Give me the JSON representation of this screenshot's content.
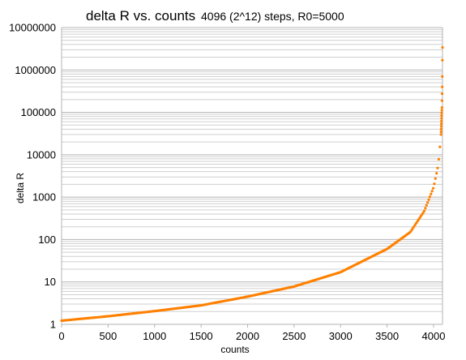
{
  "chart_data": {
    "type": "scatter",
    "title": "delta R vs. counts",
    "subtitle": "4096 (2^12) steps, R0=5000",
    "xlabel": "counts",
    "ylabel": "delta R",
    "xlim": [
      0,
      4096
    ],
    "ylim": [
      1,
      10000000
    ],
    "y_scale": "log",
    "grid": true,
    "legend": "none",
    "x_ticks": [
      "0",
      "500",
      "1000",
      "1500",
      "2000",
      "2500",
      "3000",
      "3500",
      "4000"
    ],
    "y_ticks": [
      "1",
      "10",
      "100",
      "1000",
      "10000",
      "100000",
      "1000000",
      "10000000"
    ],
    "series": [
      {
        "color": "#ff8000",
        "points": [
          {
            "x": 0,
            "y": 1.22
          },
          {
            "x": 500,
            "y": 1.55
          },
          {
            "x": 1000,
            "y": 2.05
          },
          {
            "x": 1500,
            "y": 2.8
          },
          {
            "x": 2000,
            "y": 4.5
          },
          {
            "x": 2500,
            "y": 7.8
          },
          {
            "x": 3000,
            "y": 17
          },
          {
            "x": 3500,
            "y": 60
          },
          {
            "x": 3750,
            "y": 150
          },
          {
            "x": 3900,
            "y": 470
          },
          {
            "x": 4000,
            "y": 1700
          },
          {
            "x": 4050,
            "y": 5600
          },
          {
            "x": 4080,
            "y": 30000
          },
          {
            "x": 4090,
            "y": 130000
          },
          {
            "x": 4093,
            "y": 400000
          },
          {
            "x": 4094,
            "y": 700000
          },
          {
            "x": 4095,
            "y": 1700000
          },
          {
            "x": 4096,
            "y": 3400000
          }
        ]
      }
    ]
  }
}
